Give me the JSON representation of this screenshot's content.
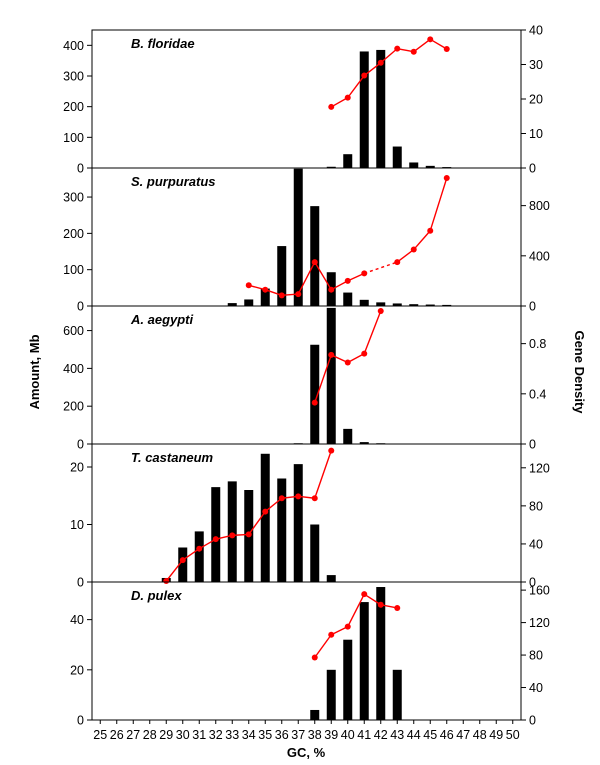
{
  "figure": {
    "ylabel_left": "Amount, Mb",
    "ylabel_right": "Gene Density",
    "xlabel": "GC, %",
    "x_categories": [
      25,
      26,
      27,
      28,
      29,
      30,
      31,
      32,
      33,
      34,
      35,
      36,
      37,
      38,
      39,
      40,
      41,
      42,
      43,
      44,
      45,
      46,
      47,
      48,
      49,
      50
    ],
    "colors": {
      "bars": "#000000",
      "line": "#ff0000",
      "axis": "#000000"
    }
  },
  "chart_data": [
    {
      "type": "bar",
      "title": "B. floridae",
      "left_ylim": [
        0,
        450
      ],
      "left_ticks": [
        0,
        100,
        200,
        300,
        400
      ],
      "right_ylim": [
        0,
        40
      ],
      "right_ticks": [
        0,
        10,
        20,
        30,
        40
      ],
      "bars": {
        "x": [
          38,
          39,
          40,
          41,
          42,
          43,
          44,
          45,
          46
        ],
        "values": [
          1,
          4,
          45,
          380,
          385,
          70,
          18,
          7,
          3
        ]
      },
      "line": {
        "x": [
          39,
          40,
          41,
          42,
          43,
          44,
          45,
          46
        ],
        "values": [
          17.7,
          20.4,
          26.8,
          30.5,
          34.6,
          33.7,
          37.3,
          34.5
        ],
        "dashed_segments": []
      }
    },
    {
      "type": "bar",
      "title": "S. purpuratus",
      "left_ylim": [
        0,
        380
      ],
      "left_ticks": [
        0,
        100,
        200,
        300
      ],
      "right_ylim": [
        0,
        1100
      ],
      "right_ticks": [
        0,
        400,
        800
      ],
      "bars": {
        "x": [
          33,
          34,
          35,
          36,
          37,
          38,
          39,
          40,
          41,
          42,
          43,
          44,
          45,
          46
        ],
        "values": [
          8,
          18,
          48,
          165,
          378,
          275,
          93,
          37,
          17,
          10,
          7,
          5,
          4,
          3
        ]
      },
      "line": {
        "x": [
          34,
          35,
          36,
          37,
          38,
          39,
          40,
          41,
          43,
          44,
          45,
          46
        ],
        "values": [
          165,
          130,
          85,
          95,
          350,
          130,
          200,
          260,
          350,
          450,
          600,
          1020
        ],
        "dashed_segments": [
          [
            41,
            43
          ]
        ]
      }
    },
    {
      "type": "bar",
      "title": "A. aegypti",
      "left_ylim": [
        0,
        730
      ],
      "left_ticks": [
        0,
        200,
        400,
        600
      ],
      "right_ylim": [
        0,
        1.1
      ],
      "right_ticks": [
        0,
        0.4,
        0.8
      ],
      "bars": {
        "x": [
          36,
          37,
          38,
          39,
          40,
          41,
          42
        ],
        "values": [
          2,
          4,
          525,
          720,
          80,
          10,
          4
        ]
      },
      "line": {
        "x": [
          38,
          39,
          40,
          41,
          42
        ],
        "values": [
          0.33,
          0.71,
          0.65,
          0.72,
          1.06
        ],
        "dashed_segments": []
      }
    },
    {
      "type": "bar",
      "title": "T. castaneum",
      "left_ylim": [
        0,
        24
      ],
      "left_ticks": [
        0,
        10,
        20
      ],
      "right_ylim": [
        0,
        145
      ],
      "right_ticks": [
        0,
        40,
        80,
        120
      ],
      "bars": {
        "x": [
          29,
          30,
          31,
          32,
          33,
          34,
          35,
          36,
          37,
          38,
          39
        ],
        "values": [
          0.7,
          6,
          8.8,
          16.5,
          17.5,
          16,
          22.3,
          18,
          20.5,
          10,
          1.2
        ]
      },
      "line": {
        "x": [
          29,
          30,
          31,
          32,
          33,
          34,
          35,
          36,
          37,
          38,
          39
        ],
        "values": [
          1,
          23,
          35,
          45,
          49,
          50,
          74,
          88,
          90,
          88,
          138
        ],
        "dashed_segments": []
      }
    },
    {
      "type": "bar",
      "title": "D. pulex",
      "left_ylim": [
        0,
        55
      ],
      "left_ticks": [
        0,
        20,
        40
      ],
      "right_ylim": [
        0,
        170
      ],
      "right_ticks": [
        0,
        40,
        80,
        120,
        160
      ],
      "bars": {
        "x": [
          38,
          39,
          40,
          41,
          42,
          43
        ],
        "values": [
          4,
          20,
          32,
          47,
          53,
          20
        ]
      },
      "line": {
        "x": [
          38,
          39,
          40,
          41,
          42,
          43
        ],
        "values": [
          77,
          105,
          115,
          155,
          142,
          138
        ],
        "dashed_segments": []
      }
    }
  ]
}
